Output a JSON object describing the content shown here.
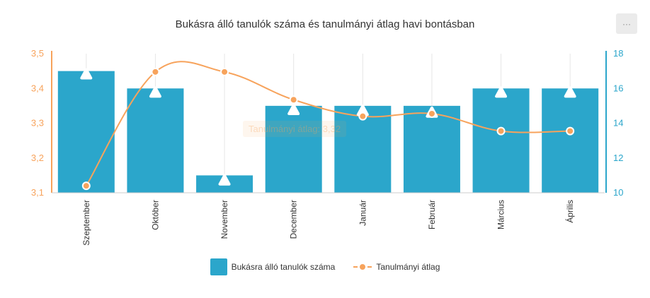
{
  "header": {
    "title": "Bukásra álló tanulók száma és tanulmányi átlag havi bontásban",
    "menu_label": "···"
  },
  "colors": {
    "bar": "#2ba6cb",
    "line": "#f7a35c",
    "left_axis": "#f7a35c",
    "right_axis": "#2ba6cb"
  },
  "tooltip": {
    "text": "Tanulmányi átlag: 3,32"
  },
  "legend": {
    "bar_label": "Bukásra álló tanulók száma",
    "line_label": "Tanulmányi átlag"
  },
  "chart_data": {
    "type": "bar",
    "title": "Bukásra álló tanulók száma és tanulmányi átlag havi bontásban",
    "categories": [
      "Szeptember",
      "Október",
      "November",
      "December",
      "Január",
      "Február",
      "Március",
      "Április"
    ],
    "series": [
      {
        "name": "Bukásra álló tanulók száma",
        "type": "bar",
        "axis": "left",
        "values": [
          3.45,
          3.4,
          3.15,
          3.35,
          3.35,
          3.35,
          3.4,
          3.4
        ]
      },
      {
        "name": "Tanulmányi átlag",
        "type": "line",
        "axis": "right",
        "smooth": true,
        "values": [
          10.4,
          16.95,
          16.95,
          15.35,
          14.4,
          14.55,
          13.55,
          13.55
        ]
      }
    ],
    "markers": {
      "shape": "triangle",
      "axis": "right",
      "values": [
        16.8,
        15.75,
        10.7,
        14.75,
        14.7,
        14.6,
        15.75,
        15.75
      ]
    },
    "left_axis": {
      "ylim": [
        3.1,
        3.5
      ],
      "ticks": [
        "3,5",
        "3,4",
        "3,3",
        "3,2",
        "3,1"
      ],
      "tick_values": [
        3.5,
        3.4,
        3.3,
        3.2,
        3.1
      ]
    },
    "right_axis": {
      "ylim": [
        10,
        18
      ],
      "ticks": [
        "18",
        "16",
        "14",
        "12",
        "10"
      ],
      "tick_values": [
        18,
        16,
        14,
        12,
        10
      ]
    },
    "legend_position": "bottom"
  }
}
